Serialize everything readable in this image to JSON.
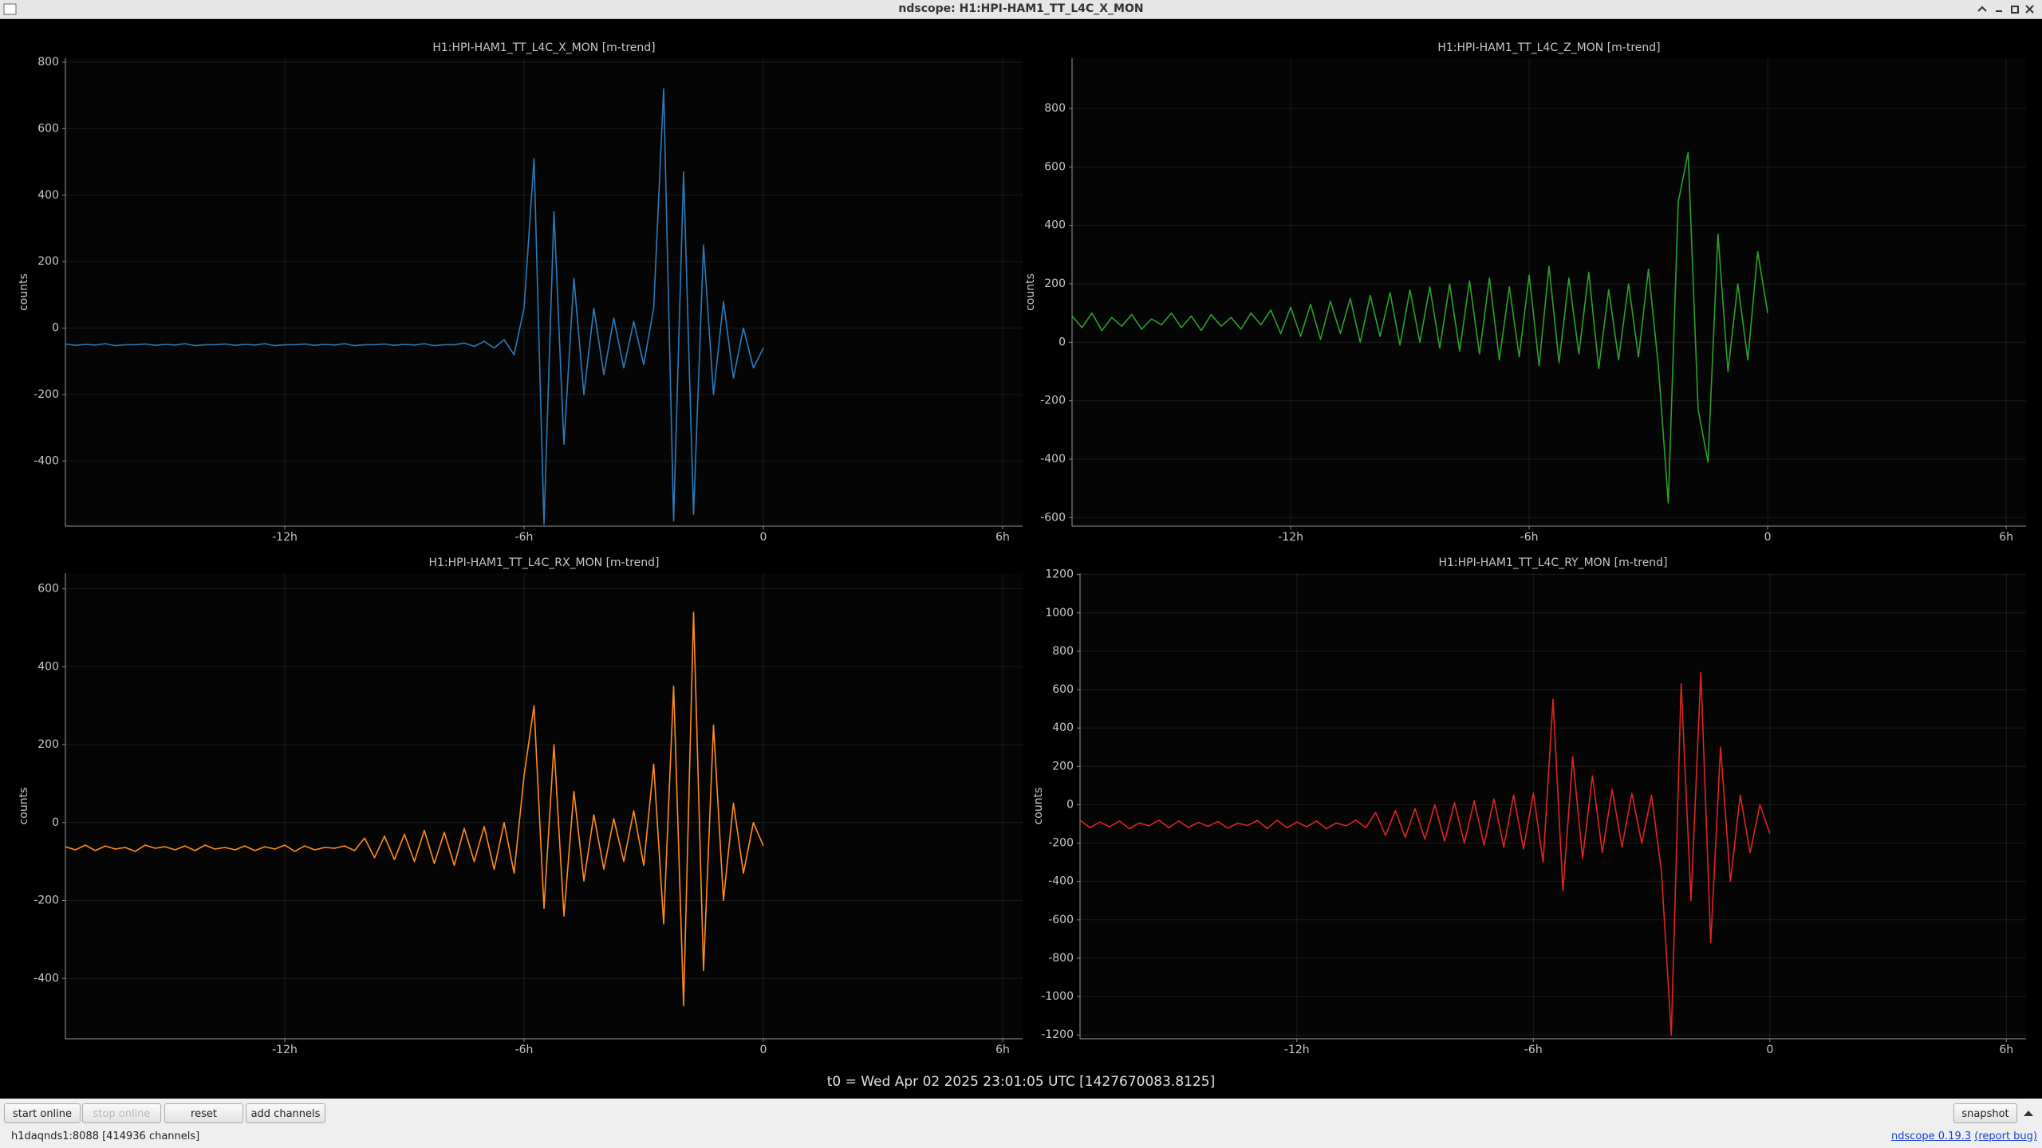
{
  "window": {
    "title": "ndscope: H1:HPI-HAM1_TT_L4C_X_MON"
  },
  "chart_data": [
    {
      "type": "line",
      "title": "H1:HPI-HAM1_TT_L4C_X_MON [m-trend]",
      "y_label": "counts",
      "color": "#2b7bba",
      "grid": true,
      "xlim": [
        -17.5,
        6.5
      ],
      "ylim": [
        -596,
        812
      ],
      "xticks": [
        {
          "value": -12,
          "label": "-12h"
        },
        {
          "value": -6,
          "label": "-6h"
        },
        0,
        {
          "value": 6,
          "label": "6h"
        }
      ],
      "yticks": [
        -400,
        -200,
        0,
        200,
        400,
        600,
        800
      ],
      "x": [
        -17.5,
        -17.25,
        -17,
        -16.75,
        -16.5,
        -16.25,
        -16,
        -15.75,
        -15.5,
        -15.25,
        -15,
        -14.75,
        -14.5,
        -14.25,
        -14,
        -13.75,
        -13.5,
        -13.25,
        -13,
        -12.75,
        -12.5,
        -12.25,
        -12,
        -11.75,
        -11.5,
        -11.25,
        -11,
        -10.75,
        -10.5,
        -10.25,
        -10,
        -9.75,
        -9.5,
        -9.25,
        -9,
        -8.75,
        -8.5,
        -8.25,
        -8,
        -7.75,
        -7.5,
        -7.25,
        -7,
        -6.75,
        -6.5,
        -6.25,
        -6,
        -5.75,
        -5.5,
        -5.25,
        -5,
        -4.75,
        -4.5,
        -4.25,
        -4,
        -3.75,
        -3.5,
        -3.25,
        -3,
        -2.75,
        -2.5,
        -2.25,
        -2,
        -1.75,
        -1.5,
        -1.25,
        -1,
        -0.75,
        -0.5,
        -0.25,
        0
      ],
      "values": [
        -48,
        -52,
        -49,
        -51,
        -47,
        -53,
        -50,
        -50,
        -48,
        -52,
        -49,
        -51,
        -47,
        -53,
        -50,
        -50,
        -48,
        -52,
        -49,
        -51,
        -47,
        -53,
        -50,
        -50,
        -48,
        -52,
        -49,
        -51,
        -47,
        -53,
        -50,
        -50,
        -48,
        -52,
        -49,
        -51,
        -47,
        -53,
        -50,
        -50,
        -45,
        -55,
        -40,
        -60,
        -35,
        -80,
        60,
        510,
        -590,
        350,
        -350,
        150,
        -200,
        60,
        -140,
        30,
        -120,
        20,
        -110,
        60,
        720,
        -580,
        470,
        -560,
        250,
        -200,
        80,
        -150,
        0,
        -120,
        -60
      ]
    },
    {
      "type": "line",
      "title": "H1:HPI-HAM1_TT_L4C_Z_MON [m-trend]",
      "y_label": "counts",
      "color": "#2ca02c",
      "grid": true,
      "xlim": [
        -17.5,
        6.5
      ],
      "ylim": [
        -629,
        972
      ],
      "xticks": [
        {
          "value": -12,
          "label": "-12h"
        },
        {
          "value": -6,
          "label": "-6h"
        },
        0,
        {
          "value": 6,
          "label": "6h"
        }
      ],
      "yticks": [
        -600,
        -400,
        -200,
        0,
        200,
        400,
        600,
        800
      ],
      "x": [
        -17.5,
        -17.25,
        -17,
        -16.75,
        -16.5,
        -16.25,
        -16,
        -15.75,
        -15.5,
        -15.25,
        -15,
        -14.75,
        -14.5,
        -14.25,
        -14,
        -13.75,
        -13.5,
        -13.25,
        -13,
        -12.75,
        -12.5,
        -12.25,
        -12,
        -11.75,
        -11.5,
        -11.25,
        -11,
        -10.75,
        -10.5,
        -10.25,
        -10,
        -9.75,
        -9.5,
        -9.25,
        -9,
        -8.75,
        -8.5,
        -8.25,
        -8,
        -7.75,
        -7.5,
        -7.25,
        -7,
        -6.75,
        -6.5,
        -6.25,
        -6,
        -5.75,
        -5.5,
        -5.25,
        -5,
        -4.75,
        -4.5,
        -4.25,
        -4,
        -3.75,
        -3.5,
        -3.25,
        -3,
        -2.75,
        -2.5,
        -2.25,
        -2,
        -1.75,
        -1.5,
        -1.25,
        -1,
        -0.75,
        -0.5,
        -0.25,
        0
      ],
      "values": [
        90,
        50,
        100,
        40,
        85,
        55,
        95,
        45,
        80,
        60,
        100,
        50,
        90,
        40,
        95,
        55,
        85,
        45,
        100,
        60,
        110,
        30,
        120,
        20,
        130,
        10,
        140,
        30,
        150,
        0,
        160,
        20,
        170,
        -10,
        180,
        0,
        190,
        -20,
        200,
        -30,
        210,
        -40,
        220,
        -60,
        190,
        -50,
        230,
        -80,
        260,
        -70,
        220,
        -40,
        240,
        -90,
        180,
        -60,
        200,
        -50,
        250,
        -80,
        -550,
        480,
        650,
        -230,
        -410,
        370,
        -100,
        200,
        -60,
        310,
        100
      ]
    },
    {
      "type": "line",
      "title": "H1:HPI-HAM1_TT_L4C_RX_MON [m-trend]",
      "y_label": "counts",
      "color": "#ff8c1a",
      "grid": true,
      "xlim": [
        -17.5,
        6.5
      ],
      "ylim": [
        -555,
        640
      ],
      "xticks": [
        {
          "value": -12,
          "label": "-12h"
        },
        {
          "value": -6,
          "label": "-6h"
        },
        0,
        {
          "value": 6,
          "label": "6h"
        }
      ],
      "yticks": [
        -400,
        -200,
        0,
        200,
        400,
        600
      ],
      "x": [
        -17.5,
        -17.25,
        -17,
        -16.75,
        -16.5,
        -16.25,
        -16,
        -15.75,
        -15.5,
        -15.25,
        -15,
        -14.75,
        -14.5,
        -14.25,
        -14,
        -13.75,
        -13.5,
        -13.25,
        -13,
        -12.75,
        -12.5,
        -12.25,
        -12,
        -11.75,
        -11.5,
        -11.25,
        -11,
        -10.75,
        -10.5,
        -10.25,
        -10,
        -9.75,
        -9.5,
        -9.25,
        -9,
        -8.75,
        -8.5,
        -8.25,
        -8,
        -7.75,
        -7.5,
        -7.25,
        -7,
        -6.75,
        -6.5,
        -6.25,
        -6,
        -5.75,
        -5.5,
        -5.25,
        -5,
        -4.75,
        -4.5,
        -4.25,
        -4,
        -3.75,
        -3.5,
        -3.25,
        -3,
        -2.75,
        -2.5,
        -2.25,
        -2,
        -1.75,
        -1.5,
        -1.25,
        -1,
        -0.75,
        -0.5,
        -0.25,
        0
      ],
      "values": [
        -62,
        -70,
        -58,
        -72,
        -60,
        -68,
        -64,
        -74,
        -58,
        -66,
        -62,
        -70,
        -60,
        -72,
        -58,
        -68,
        -64,
        -70,
        -60,
        -72,
        -62,
        -68,
        -58,
        -74,
        -60,
        -70,
        -64,
        -66,
        -60,
        -72,
        -40,
        -90,
        -35,
        -95,
        -30,
        -100,
        -20,
        -105,
        -25,
        -110,
        -15,
        -100,
        -10,
        -120,
        0,
        -130,
        120,
        300,
        -220,
        200,
        -240,
        80,
        -150,
        20,
        -120,
        10,
        -100,
        30,
        -110,
        150,
        -260,
        350,
        -470,
        540,
        -380,
        250,
        -200,
        50,
        -130,
        0,
        -60
      ]
    },
    {
      "type": "line",
      "title": "H1:HPI-HAM1_TT_L4C_RY_MON [m-trend]",
      "y_label": "counts",
      "color": "#e02424",
      "grid": true,
      "xlim": [
        -17.5,
        6.5
      ],
      "ylim": [
        -1220,
        1207
      ],
      "xticks": [
        {
          "value": -12,
          "label": "-12h"
        },
        {
          "value": -6,
          "label": "-6h"
        },
        0,
        {
          "value": 6,
          "label": "6h"
        }
      ],
      "yticks": [
        -1200,
        -1000,
        -800,
        -600,
        -400,
        -200,
        0,
        200,
        400,
        600,
        800,
        1000,
        1200
      ],
      "x": [
        -17.5,
        -17.25,
        -17,
        -16.75,
        -16.5,
        -16.25,
        -16,
        -15.75,
        -15.5,
        -15.25,
        -15,
        -14.75,
        -14.5,
        -14.25,
        -14,
        -13.75,
        -13.5,
        -13.25,
        -13,
        -12.75,
        -12.5,
        -12.25,
        -12,
        -11.75,
        -11.5,
        -11.25,
        -11,
        -10.75,
        -10.5,
        -10.25,
        -10,
        -9.75,
        -9.5,
        -9.25,
        -9,
        -8.75,
        -8.5,
        -8.25,
        -8,
        -7.75,
        -7.5,
        -7.25,
        -7,
        -6.75,
        -6.5,
        -6.25,
        -6,
        -5.75,
        -5.5,
        -5.25,
        -5,
        -4.75,
        -4.5,
        -4.25,
        -4,
        -3.75,
        -3.5,
        -3.25,
        -3,
        -2.75,
        -2.5,
        -2.25,
        -2,
        -1.75,
        -1.5,
        -1.25,
        -1,
        -0.75,
        -0.5,
        -0.25,
        0
      ],
      "values": [
        -80,
        -120,
        -90,
        -115,
        -85,
        -125,
        -95,
        -110,
        -80,
        -120,
        -85,
        -118,
        -92,
        -112,
        -88,
        -122,
        -96,
        -108,
        -82,
        -124,
        -80,
        -120,
        -90,
        -115,
        -85,
        -125,
        -95,
        -110,
        -80,
        -120,
        -40,
        -160,
        -30,
        -170,
        -20,
        -180,
        0,
        -190,
        10,
        -200,
        20,
        -210,
        30,
        -220,
        50,
        -230,
        60,
        -300,
        550,
        -450,
        250,
        -280,
        150,
        -250,
        80,
        -220,
        60,
        -200,
        50,
        -350,
        -1200,
        630,
        -500,
        690,
        -720,
        300,
        -400,
        50,
        -250,
        0,
        -150
      ]
    }
  ],
  "footer": {
    "t0": "t0 = Wed Apr 02 2025 23:01:05 UTC [1427670083.8125]",
    "buttons": [
      "start online",
      "stop online",
      "reset",
      "add channels"
    ],
    "snapshot": "snapshot",
    "status": "h1daqnds1:8088  [414936 channels]",
    "version": "ndscope 0.19.3",
    "report": "(report bug)"
  }
}
